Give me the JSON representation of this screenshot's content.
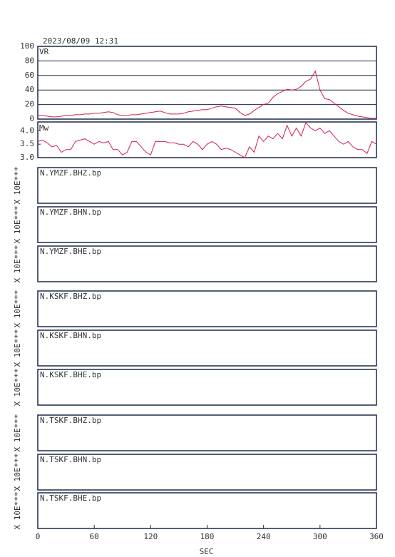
{
  "title": "2023/08/09  12:31",
  "chart_data": [
    {
      "type": "line",
      "label": "VR",
      "ylim": [
        0,
        100
      ],
      "yticks": [
        0,
        20,
        40,
        60,
        80,
        100
      ],
      "grid": true,
      "x": [
        0,
        5,
        10,
        15,
        20,
        25,
        30,
        35,
        40,
        45,
        50,
        55,
        60,
        65,
        70,
        75,
        80,
        85,
        90,
        95,
        100,
        105,
        110,
        115,
        120,
        125,
        130,
        135,
        140,
        145,
        150,
        155,
        160,
        165,
        170,
        175,
        180,
        185,
        190,
        195,
        200,
        205,
        210,
        215,
        220,
        225,
        230,
        235,
        240,
        245,
        250,
        255,
        260,
        265,
        270,
        275,
        280,
        285,
        290,
        295,
        300,
        305,
        310,
        315,
        320,
        325,
        330,
        335,
        340,
        345,
        350,
        355,
        360
      ],
      "series": [
        {
          "color": "#d2204e",
          "values": [
            5,
            5,
            4,
            3,
            3,
            4,
            5,
            5,
            6,
            6,
            7,
            7,
            8,
            8,
            9,
            10,
            9,
            6,
            5,
            5,
            6,
            6,
            7,
            8,
            9,
            10,
            11,
            9,
            7,
            7,
            7,
            8,
            10,
            11,
            12,
            13,
            13,
            15,
            17,
            18,
            17,
            16,
            15,
            9,
            5,
            7,
            12,
            16,
            20,
            22,
            30,
            35,
            38,
            41,
            40,
            41,
            45,
            52,
            55,
            66,
            40,
            28,
            27,
            22,
            17,
            12,
            8,
            6,
            4,
            3,
            2,
            1,
            1
          ]
        }
      ]
    },
    {
      "type": "line",
      "label": "Mw",
      "ylim": [
        3.0,
        4.3
      ],
      "yticks": [
        {
          "value": 3,
          "label": "3.0"
        },
        {
          "value": 3.5,
          "label": "3.5"
        },
        {
          "value": 4,
          "label": "4.0"
        }
      ],
      "grid": false,
      "x": [
        0,
        5,
        10,
        15,
        20,
        25,
        30,
        35,
        40,
        45,
        50,
        55,
        60,
        65,
        70,
        75,
        80,
        85,
        90,
        95,
        100,
        105,
        110,
        115,
        120,
        125,
        130,
        135,
        140,
        145,
        150,
        155,
        160,
        165,
        170,
        175,
        180,
        185,
        190,
        195,
        200,
        205,
        210,
        215,
        220,
        225,
        230,
        235,
        240,
        245,
        250,
        255,
        260,
        265,
        270,
        275,
        280,
        285,
        290,
        295,
        300,
        305,
        310,
        315,
        320,
        325,
        330,
        335,
        340,
        345,
        350,
        355,
        360
      ],
      "series": [
        {
          "color": "#d2204e",
          "values": [
            3.6,
            3.65,
            3.55,
            3.4,
            3.45,
            3.2,
            3.3,
            3.3,
            3.6,
            3.65,
            3.7,
            3.6,
            3.5,
            3.6,
            3.55,
            3.6,
            3.3,
            3.3,
            3.1,
            3.2,
            3.6,
            3.6,
            3.4,
            3.2,
            3.1,
            3.6,
            3.6,
            3.6,
            3.55,
            3.55,
            3.5,
            3.5,
            3.4,
            3.6,
            3.5,
            3.3,
            3.5,
            3.6,
            3.5,
            3.3,
            3.35,
            3.3,
            3.2,
            3.1,
            3.0,
            3.4,
            3.2,
            3.8,
            3.6,
            3.8,
            3.7,
            3.9,
            3.7,
            4.2,
            3.8,
            4.1,
            3.8,
            4.3,
            4.1,
            4.0,
            4.1,
            3.9,
            4.0,
            3.8,
            3.6,
            3.5,
            3.6,
            3.4,
            3.3,
            3.3,
            3.15,
            3.6,
            3.5
          ]
        }
      ]
    }
  ],
  "panels": [
    {
      "label": "N.YMZF.BHZ.bp",
      "ylabel": "X 10E***"
    },
    {
      "label": "N.YMZF.BHN.bp",
      "ylabel": "X 10E***"
    },
    {
      "label": "N.YMZF.BHE.bp",
      "ylabel": "X 10E***"
    },
    {
      "label": "N.KSKF.BHZ.bp",
      "ylabel": "X 10E***"
    },
    {
      "label": "N.KSKF.BHN.bp",
      "ylabel": "X 10E***"
    },
    {
      "label": "N.KSKF.BHE.bp",
      "ylabel": "X 10E***"
    },
    {
      "label": "N.TSKF.BHZ.bp",
      "ylabel": "X 10E***"
    },
    {
      "label": "N.TSKF.BHN.bp",
      "ylabel": "X 10E***"
    },
    {
      "label": "N.TSKF.BHE.bp",
      "ylabel": "X 10E***"
    }
  ],
  "x_axis": {
    "label": "SEC",
    "xlim": [
      0,
      360
    ],
    "xticks": [
      0,
      60,
      120,
      180,
      240,
      300,
      360
    ]
  }
}
